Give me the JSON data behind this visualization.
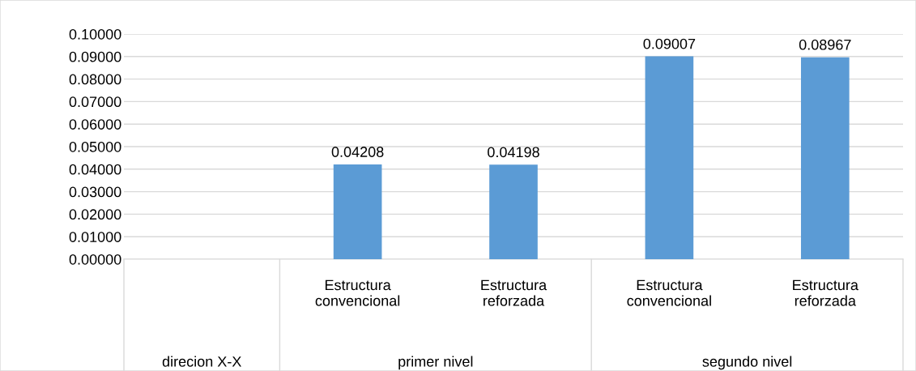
{
  "chart_data": {
    "type": "bar",
    "categories": [
      null,
      "Estructura\nconvencional",
      "Estructura\nreforzada",
      "Estructura\nconvencional",
      "Estructura\nreforzada"
    ],
    "values": [
      null,
      0.04208,
      0.04198,
      0.09007,
      0.08967
    ],
    "color": "#5b9bd5",
    "data_labels": true,
    "ylim": [
      0,
      0.1
    ],
    "yticks": [
      {
        "value": 0,
        "label": "0.00000"
      },
      {
        "value": 0.01,
        "label": "0.01000"
      },
      {
        "value": 0.02,
        "label": "0.02000"
      },
      {
        "value": 0.03,
        "label": "0.03000"
      },
      {
        "value": 0.04,
        "label": "0.04000"
      },
      {
        "value": 0.05,
        "label": "0.05000"
      },
      {
        "value": 0.06,
        "label": "0.06000"
      },
      {
        "value": 0.07,
        "label": "0.07000"
      },
      {
        "value": 0.08,
        "label": "0.08000"
      },
      {
        "value": 0.09,
        "label": "0.09000"
      },
      {
        "value": 0.1,
        "label": "0.10000"
      }
    ],
    "grid": "y",
    "annotations": [
      "direcion X-X",
      "primer nivel",
      "segundo nivel"
    ]
  }
}
